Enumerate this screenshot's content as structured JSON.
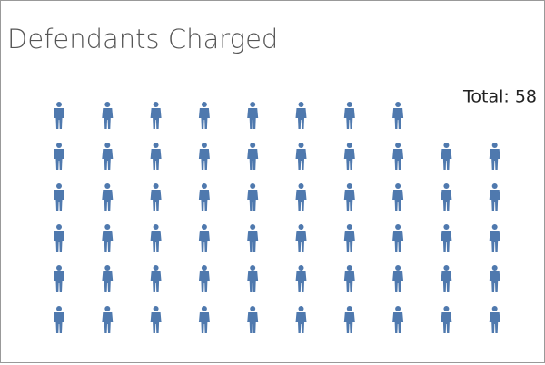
{
  "chart_data": {
    "type": "pictogram",
    "title": "Defendants Charged",
    "values": [
      58
    ],
    "value_labels": [
      "Total: 58"
    ],
    "color": "#4f79ae"
  }
}
